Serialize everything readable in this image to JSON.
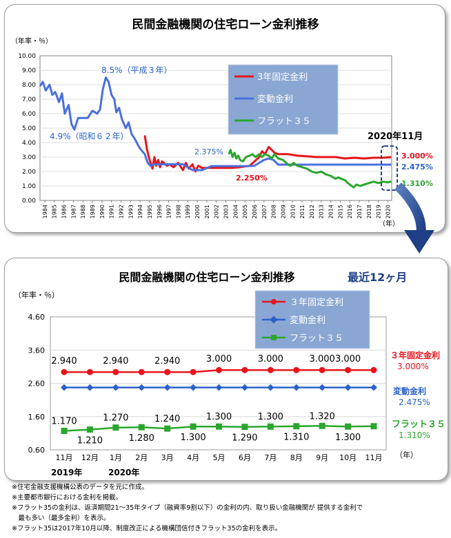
{
  "chart_data": [
    {
      "type": "line",
      "title": "民間金融機関の住宅ローン金利推移",
      "ylabel": "（年率・％）",
      "xlabel": "（年）",
      "ylim": [
        0,
        10
      ],
      "yticks": [
        "0.00",
        "1.00",
        "2.00",
        "3.00",
        "4.00",
        "5.00",
        "6.00",
        "7.00",
        "8.00",
        "9.00",
        "10.00"
      ],
      "xlim": [
        1984,
        2020.9
      ],
      "categories": [
        "1984",
        "1985",
        "1986",
        "1987",
        "1988",
        "1989",
        "1990",
        "1991",
        "1992",
        "1993",
        "1994",
        "1995",
        "1996",
        "1997",
        "1998",
        "1999",
        "2000",
        "2001",
        "2002",
        "2003",
        "2004",
        "2005",
        "2006",
        "2007",
        "2008",
        "2009",
        "2010",
        "2011",
        "2012",
        "2013",
        "2014",
        "2015",
        "2016",
        "2017",
        "2018",
        "2019",
        "2020"
      ],
      "series": [
        {
          "name": "3年固定金利",
          "color": "#e8141c",
          "x": [
            1995.0,
            1995.2,
            1995.5,
            1995.8,
            1996.0,
            1996.2,
            1996.4,
            1996.6,
            1996.8,
            1997.0,
            1997.3,
            1997.6,
            1998.0,
            1998.5,
            1999.0,
            1999.3,
            1999.6,
            2000.0,
            2000.3,
            2000.6,
            2001.0,
            2002.0,
            2003.0,
            2004.0,
            2005.0,
            2006.0,
            2006.5,
            2007.0,
            2007.3,
            2007.6,
            2008.0,
            2008.3,
            2008.6,
            2009.0,
            2009.5,
            2010.0,
            2011.0,
            2012.0,
            2013.0,
            2014.0,
            2015.0,
            2016.0,
            2017.0,
            2018.0,
            2019.0,
            2020.0,
            2020.85
          ],
          "y": [
            4.5,
            3.6,
            2.8,
            2.2,
            3.0,
            2.4,
            2.8,
            2.3,
            2.7,
            2.6,
            2.4,
            2.5,
            2.3,
            2.6,
            2.1,
            2.6,
            2.2,
            2.5,
            2.0,
            2.4,
            2.25,
            2.25,
            2.25,
            2.25,
            2.3,
            2.4,
            2.7,
            3.0,
            3.4,
            3.2,
            3.7,
            3.5,
            3.3,
            3.2,
            3.2,
            3.2,
            3.1,
            3.05,
            3.0,
            3.0,
            3.0,
            2.9,
            2.95,
            2.9,
            2.95,
            2.95,
            3.0
          ]
        },
        {
          "name": "変動金利",
          "color": "#4a6fdc",
          "x": [
            1984.0,
            1984.3,
            1984.6,
            1985.0,
            1985.3,
            1985.6,
            1986.0,
            1986.3,
            1986.6,
            1987.0,
            1987.3,
            1987.6,
            1988.0,
            1988.5,
            1989.0,
            1989.5,
            1990.0,
            1990.3,
            1990.6,
            1990.9,
            1991.2,
            1991.5,
            1991.8,
            1992.0,
            1992.3,
            1992.6,
            1993.0,
            1993.3,
            1993.6,
            1994.0,
            1994.3,
            1994.6,
            1995.0,
            1995.3,
            1995.6,
            1996.0,
            1997.0,
            1998.0,
            1999.0,
            2000.0,
            2001.0,
            2002.0,
            2003.0,
            2004.0,
            2005.0,
            2006.0,
            2006.5,
            2007.0,
            2007.5,
            2008.0,
            2008.5,
            2009.0,
            2010.0,
            2011.0,
            2012.0,
            2013.0,
            2014.0,
            2015.0,
            2016.0,
            2017.0,
            2018.0,
            2019.0,
            2020.0,
            2020.85
          ],
          "y": [
            7.9,
            8.2,
            7.6,
            8.0,
            7.3,
            7.5,
            6.8,
            7.4,
            6.0,
            6.6,
            5.3,
            4.9,
            5.7,
            5.7,
            5.7,
            6.2,
            6.0,
            6.3,
            7.7,
            8.5,
            8.2,
            7.3,
            7.0,
            6.1,
            6.4,
            5.6,
            5.0,
            5.4,
            4.6,
            4.2,
            3.8,
            3.5,
            3.2,
            2.6,
            2.4,
            2.5,
            2.5,
            2.5,
            2.5,
            2.1,
            2.1,
            2.375,
            2.375,
            2.375,
            2.375,
            2.375,
            2.4,
            2.6,
            2.8,
            2.9,
            2.8,
            2.475,
            2.475,
            2.475,
            2.475,
            2.475,
            2.475,
            2.475,
            2.475,
            2.475,
            2.475,
            2.475,
            2.475,
            2.475
          ]
        },
        {
          "name": "フラット３５",
          "color": "#2aa62e",
          "x": [
            2003.8,
            2004.0,
            2004.2,
            2004.4,
            2004.6,
            2004.8,
            2005.0,
            2005.3,
            2005.6,
            2006.0,
            2006.3,
            2006.6,
            2007.0,
            2007.3,
            2007.6,
            2008.0,
            2008.3,
            2008.6,
            2009.0,
            2009.5,
            2010.0,
            2010.3,
            2010.6,
            2011.0,
            2011.5,
            2012.0,
            2012.5,
            2013.0,
            2013.5,
            2014.0,
            2014.5,
            2015.0,
            2015.3,
            2015.6,
            2016.0,
            2016.3,
            2016.6,
            2016.9,
            2017.2,
            2017.6,
            2018.0,
            2018.5,
            2019.0,
            2019.5,
            2020.0,
            2020.5,
            2020.85
          ],
          "y": [
            3.2,
            3.5,
            3.0,
            3.3,
            2.9,
            3.1,
            2.8,
            2.7,
            3.0,
            3.1,
            3.2,
            3.0,
            3.2,
            3.0,
            3.2,
            3.1,
            2.9,
            3.2,
            2.9,
            2.8,
            2.5,
            2.4,
            2.6,
            2.4,
            2.3,
            2.2,
            2.0,
            1.9,
            2.0,
            1.8,
            1.7,
            1.5,
            1.6,
            1.5,
            1.4,
            1.2,
            1.05,
            0.9,
            1.1,
            1.0,
            1.1,
            1.2,
            1.3,
            1.2,
            1.3,
            1.25,
            1.31
          ]
        }
      ],
      "annotations": {
        "peak": "8.5%（平成３年）",
        "low": "4.9%（昭和６２年）",
        "hendo_2003": "2.375%",
        "kotei_2003": "2.250%",
        "period": "2020年11月",
        "kotei_now": "3.000%",
        "hendo_now": "2.475%",
        "flat_now": "1.310%"
      }
    },
    {
      "type": "line",
      "title": "民間金融機関の住宅ローン金利推移",
      "subtitle": "最近12ヶ月",
      "ylabel": "（年率・％）",
      "xlabel": "（年）",
      "ylim": [
        0.6,
        4.6
      ],
      "yticks": [
        "0.60",
        "1.60",
        "2.60",
        "3.60",
        "4.60"
      ],
      "categories": [
        "11月",
        "12月",
        "1月",
        "2月",
        "3月",
        "4月",
        "5月",
        "6月",
        "7月",
        "8月",
        "9月",
        "10月",
        "11月"
      ],
      "year_labels": [
        "2019年",
        "2020年"
      ],
      "series": [
        {
          "name": "３年固定金利",
          "color": "#e8141c",
          "marker": "circle",
          "values": [
            2.94,
            2.94,
            2.94,
            2.94,
            2.94,
            2.94,
            3.0,
            3.0,
            3.0,
            3.0,
            3.0,
            3.0,
            3.0
          ],
          "labels": [
            "2.940",
            "",
            "2.940",
            "",
            "2.940",
            "",
            "3.000",
            "",
            "3.000",
            "",
            "3.000",
            "3.000",
            ""
          ],
          "end_label": "３年固定金利",
          "end_value": "3.000%"
        },
        {
          "name": "変動金利",
          "color": "#2a62c9",
          "marker": "diamond",
          "values": [
            2.475,
            2.475,
            2.475,
            2.475,
            2.475,
            2.475,
            2.475,
            2.475,
            2.475,
            2.475,
            2.475,
            2.475,
            2.475
          ],
          "end_label": "変動金利",
          "end_value": "2.475%"
        },
        {
          "name": "フラット３５",
          "color": "#2aa62e",
          "marker": "square",
          "values": [
            1.17,
            1.21,
            1.27,
            1.28,
            1.24,
            1.3,
            1.3,
            1.29,
            1.3,
            1.31,
            1.32,
            1.3,
            1.31
          ],
          "labels": [
            "1.170",
            "1.210",
            "1.270",
            "1.280",
            "1.240",
            "1.300",
            "1.300",
            "1.290",
            "1.300",
            "1.310",
            "1.320",
            "1.300",
            ""
          ],
          "end_label": "フラット３５",
          "end_value": "1.310%"
        }
      ]
    }
  ],
  "footnotes": [
    "※住宅金融支援機構公表のデータを元に作成。",
    "※主要都市銀行における金利を掲載。",
    "※フラット35の金利は、返済期間21～35年タイプ（融資率9割以下）の金利の内、取り扱い金融機関が 提供する金利で",
    "　最も多い（最多金利）を表示。",
    "※フラット35は2017年10月以降、制度改正による機構団信付きフラット35の金利を表示。"
  ]
}
